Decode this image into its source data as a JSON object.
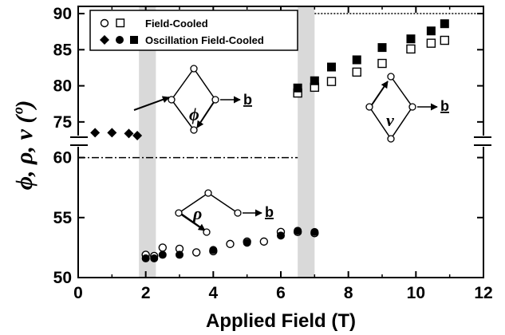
{
  "chart_data": {
    "type": "scatter",
    "xlabel": "Applied Field (T)",
    "ylabel": "ϕ, ρ, ν (º)",
    "xlim": [
      0,
      12
    ],
    "x_ticks": [
      "0",
      "2",
      "4",
      "6",
      "8",
      "10",
      "12"
    ],
    "y_axis_broken": true,
    "y_upper_range": [
      72,
      91
    ],
    "y_lower_range": [
      50,
      61.5
    ],
    "y_ticks": [
      "50",
      "55",
      "60",
      "75",
      "80",
      "85",
      "90"
    ],
    "shaded_regions": [
      [
        1.8,
        2.3
      ],
      [
        6.5,
        7.0
      ]
    ],
    "reference_lines": [
      {
        "y": 90,
        "x_range": [
          7.0,
          12.0
        ],
        "style": "dotted"
      },
      {
        "y": 60,
        "x_range": [
          0.0,
          6.5
        ],
        "style": "dash-dot"
      }
    ],
    "legend": {
      "position": "top-left",
      "rows": [
        {
          "label": "Field-Cooled",
          "markers": [
            "open-circle",
            "open-square"
          ]
        },
        {
          "label": "Oscillation Field-Cooled",
          "markers": [
            "filled-diamond",
            "filled-circle",
            "filled-square"
          ]
        }
      ]
    },
    "series": [
      {
        "name": "Field-Cooled",
        "param": "ν",
        "marker": "open-square",
        "x": [
          6.5,
          7.0,
          7.5,
          8.25,
          9.0,
          9.85,
          10.45,
          10.85
        ],
        "y": [
          79.0,
          79.8,
          80.6,
          81.9,
          83.1,
          85.1,
          85.9,
          86.3
        ]
      },
      {
        "name": "Oscillation Field-Cooled",
        "param": "ν",
        "marker": "filled-square",
        "x": [
          6.5,
          7.0,
          7.5,
          8.25,
          9.0,
          9.85,
          10.45,
          10.85
        ],
        "y": [
          79.7,
          80.7,
          82.6,
          83.6,
          85.3,
          86.5,
          87.6,
          88.6
        ]
      },
      {
        "name": "Field-Cooled",
        "param": "ρ",
        "marker": "open-circle",
        "x": [
          2.0,
          2.25,
          2.5,
          3.0,
          3.5,
          4.0,
          4.5,
          5.0,
          5.5,
          6.0,
          6.5,
          7.0
        ],
        "y": [
          51.9,
          51.8,
          52.5,
          52.4,
          52.1,
          52.2,
          52.8,
          53.0,
          53.0,
          53.8,
          53.8,
          53.7
        ]
      },
      {
        "name": "Oscillation Field-Cooled",
        "param": "ρ",
        "marker": "filled-circle",
        "x": [
          2.0,
          2.25,
          2.5,
          3.0,
          4.0,
          5.0,
          6.0,
          6.5,
          7.0
        ],
        "y": [
          51.6,
          51.6,
          51.9,
          51.9,
          52.3,
          52.9,
          53.5,
          53.9,
          53.8
        ]
      },
      {
        "name": "Oscillation Field-Cooled",
        "param": "ϕ",
        "marker": "filled-diamond",
        "x": [
          0.5,
          1.0,
          1.5,
          1.75
        ],
        "y": [
          73.5,
          73.5,
          73.4,
          73.1
        ]
      }
    ],
    "insets": [
      {
        "symbol": "ϕ",
        "direction_label": "b"
      },
      {
        "symbol": "ρ",
        "direction_label": "b"
      },
      {
        "symbol": "ν",
        "direction_label": "b"
      }
    ]
  }
}
